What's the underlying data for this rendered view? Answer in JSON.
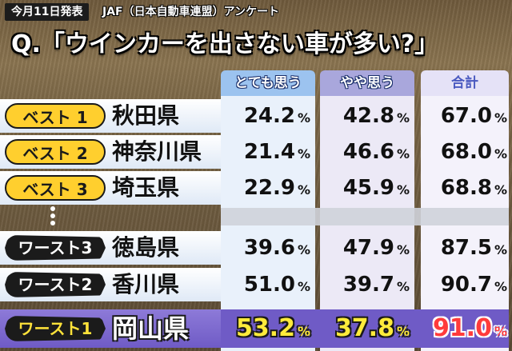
{
  "header": {
    "date_badge": "今月11日発表",
    "survey": "JAF（日本自動車連盟）アンケート",
    "question": "Q.「ウインカーを出さない車が多い?」"
  },
  "columns": {
    "c1": "とても思う",
    "c2": "やや思う",
    "c3": "合計"
  },
  "percent_sign": "%",
  "rows": [
    {
      "rank": "ベスト 1",
      "pref": "秋田県",
      "c1": "24.2",
      "c2": "42.8",
      "c3": "67.0"
    },
    {
      "rank": "ベスト 2",
      "pref": "神奈川県",
      "c1": "21.4",
      "c2": "46.6",
      "c3": "68.0"
    },
    {
      "rank": "ベスト 3",
      "pref": "埼玉県",
      "c1": "22.9",
      "c2": "45.9",
      "c3": "68.8"
    },
    {
      "rank": "ワースト3",
      "pref": "徳島県",
      "c1": "39.6",
      "c2": "47.9",
      "c3": "87.5"
    },
    {
      "rank": "ワースト2",
      "pref": "香川県",
      "c1": "51.0",
      "c2": "39.7",
      "c3": "90.7"
    },
    {
      "rank": "ワースト1",
      "pref": "岡山県",
      "c1": "53.2",
      "c2": "37.8",
      "c3": "91.0"
    }
  ],
  "colors": {
    "best_badge": "#ffcf2e",
    "worst_badge": "#1b1b1b",
    "highlight_row": "#6f5bc6",
    "highlight_total": "#ff3b3b"
  }
}
